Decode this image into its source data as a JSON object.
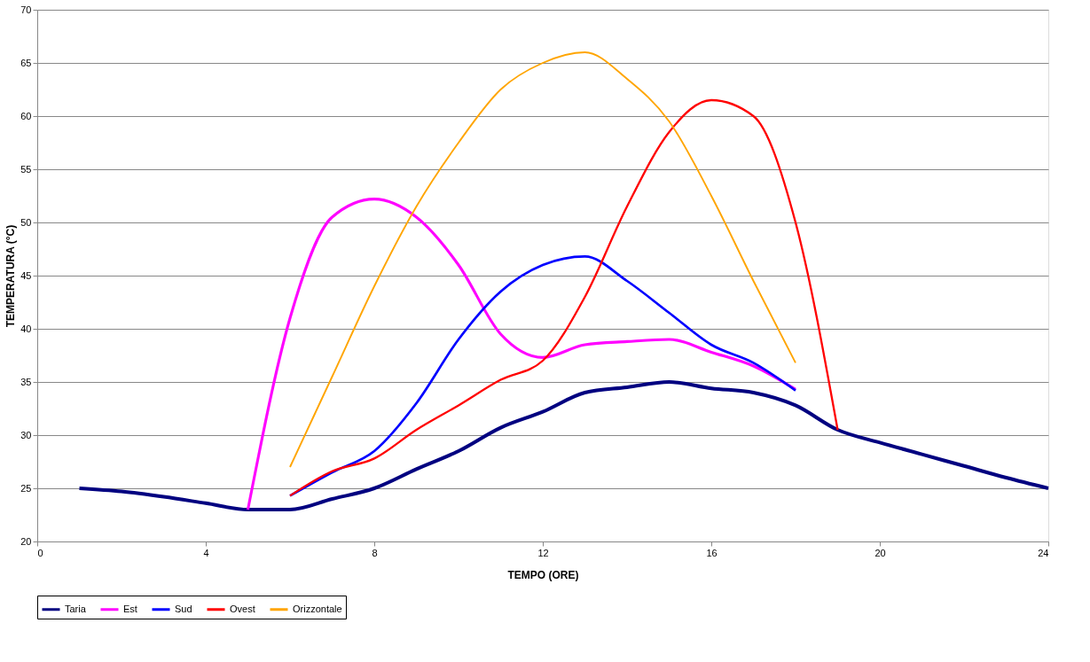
{
  "chart_data": {
    "type": "line",
    "xlabel": "TEMPO (ORE)",
    "ylabel": "TEMPERATURA (°C)",
    "xlim": [
      0,
      24
    ],
    "xticks": [
      0,
      4,
      8,
      12,
      16,
      20,
      24
    ],
    "ylim": [
      20,
      70
    ],
    "yticks": [
      20,
      25,
      30,
      35,
      40,
      45,
      50,
      55,
      60,
      65,
      70
    ],
    "grid": "y",
    "legend": "bottom",
    "marker": "none",
    "line_style": "solid",
    "series": [
      {
        "name": "Taria",
        "color": "#000080",
        "x": [
          1,
          2,
          3,
          4,
          5,
          6,
          7,
          8,
          9,
          10,
          11,
          12,
          13,
          14,
          15,
          16,
          17,
          18,
          19,
          20,
          21,
          22,
          23,
          24
        ],
        "values": [
          25,
          24.7,
          24.2,
          23.6,
          23,
          23,
          24,
          25,
          26.8,
          28.5,
          30.7,
          32.2,
          34,
          34.5,
          35,
          34.4,
          34,
          32.8,
          30.5,
          29.3,
          28.2,
          27.1,
          26,
          25
        ]
      },
      {
        "name": "Est",
        "color": "#ff00ff",
        "x": [
          5,
          6,
          7,
          8,
          9,
          10,
          11,
          12,
          13,
          14,
          15,
          16,
          17,
          18
        ],
        "values": [
          23,
          41,
          50.5,
          52.2,
          50.5,
          46,
          39.5,
          37.3,
          38.5,
          38.8,
          39,
          37.8,
          36.5,
          34.3
        ]
      },
      {
        "name": "Sud",
        "color": "#0000ff",
        "x": [
          6,
          7,
          8,
          9,
          10,
          11,
          12,
          13,
          14,
          15,
          16,
          17,
          18
        ],
        "values": [
          24.3,
          26.5,
          28.5,
          33,
          39,
          43.5,
          46,
          46.8,
          44.5,
          41.5,
          38.5,
          36.8,
          34.2
        ]
      },
      {
        "name": "Ovest",
        "color": "#ff0000",
        "x": [
          6,
          7,
          8,
          9,
          10,
          11,
          12,
          13,
          14,
          15,
          16,
          17,
          18,
          19
        ],
        "values": [
          24.3,
          26.6,
          27.8,
          30.5,
          32.8,
          35.2,
          37,
          43,
          51.5,
          58.5,
          61.5,
          60,
          50,
          30.5
        ]
      },
      {
        "name": "Orizzontale",
        "color": "#ffa500",
        "x": [
          6,
          7,
          8,
          9,
          10,
          11,
          12,
          13,
          14,
          15,
          16,
          17,
          18
        ],
        "values": [
          27,
          35.5,
          44,
          51.5,
          57.5,
          62.5,
          65,
          66,
          63.5,
          59.5,
          52.5,
          44.5,
          36.8
        ]
      }
    ]
  }
}
